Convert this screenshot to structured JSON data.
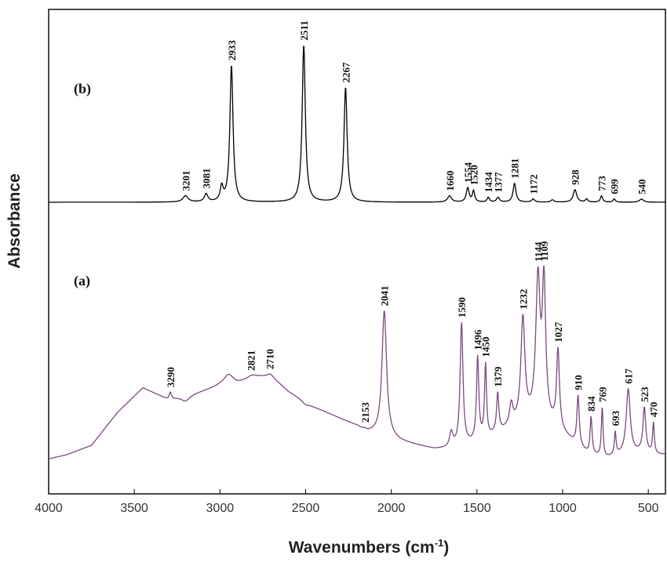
{
  "chart_data": {
    "type": "line",
    "title": "",
    "xlabel": "Wavenumbers (cm",
    "xlabel_sup": "-1",
    "xlabel_close": ")",
    "ylabel": "Absorbance",
    "xlim": [
      4000,
      400
    ],
    "x_ticks": [
      4000,
      3500,
      3000,
      2500,
      2000,
      1500,
      1000,
      500
    ],
    "grid": false,
    "legend": "none",
    "colors": {
      "a": "#7a4a7e",
      "b": "#000000",
      "axis": "#000000"
    },
    "series": [
      {
        "name": "(a)",
        "color": "#7a4a7e",
        "baseline": [
          [
            4000,
            0.06
          ],
          [
            3900,
            0.08
          ],
          [
            3750,
            0.13
          ],
          [
            3600,
            0.3
          ],
          [
            3450,
            0.43
          ],
          [
            3300,
            0.37
          ],
          [
            3150,
            0.4
          ],
          [
            3000,
            0.44
          ],
          [
            2900,
            0.45
          ],
          [
            2800,
            0.49
          ],
          [
            2700,
            0.49
          ],
          [
            2600,
            0.41
          ],
          [
            2450,
            0.33
          ],
          [
            2300,
            0.27
          ],
          [
            2200,
            0.23
          ],
          [
            2150,
            0.2
          ],
          [
            2050,
            0.18
          ],
          [
            1950,
            0.15
          ],
          [
            1850,
            0.13
          ],
          [
            1750,
            0.11
          ],
          [
            1650,
            0.11
          ],
          [
            1550,
            0.13
          ],
          [
            1450,
            0.16
          ],
          [
            1350,
            0.2
          ],
          [
            1250,
            0.24
          ],
          [
            1150,
            0.26
          ],
          [
            1050,
            0.22
          ],
          [
            950,
            0.15
          ],
          [
            850,
            0.08
          ],
          [
            750,
            0.06
          ],
          [
            650,
            0.08
          ],
          [
            550,
            0.09
          ],
          [
            450,
            0.08
          ],
          [
            400,
            0.08
          ]
        ],
        "peaks": [
          {
            "x": 3290,
            "y": 0.41,
            "w": 8
          },
          {
            "x": 3201,
            "y": 0.36,
            "w": 30
          },
          {
            "x": 2950,
            "y": 0.5,
            "w": 35
          },
          {
            "x": 2821,
            "y": 0.49,
            "w": 18
          },
          {
            "x": 2710,
            "y": 0.5,
            "w": 16
          },
          {
            "x": 2500,
            "y": 0.34,
            "w": 25
          },
          {
            "x": 2153,
            "y": 0.21,
            "w": 8
          },
          {
            "x": 2041,
            "y": 0.83,
            "w": 16
          },
          {
            "x": 1650,
            "y": 0.19,
            "w": 12
          },
          {
            "x": 1590,
            "y": 0.76,
            "w": 10
          },
          {
            "x": 1496,
            "y": 0.58,
            "w": 8
          },
          {
            "x": 1450,
            "y": 0.54,
            "w": 7
          },
          {
            "x": 1379,
            "y": 0.39,
            "w": 8
          },
          {
            "x": 1300,
            "y": 0.33,
            "w": 12
          },
          {
            "x": 1232,
            "y": 0.78,
            "w": 14
          },
          {
            "x": 1144,
            "y": 0.97,
            "w": 15
          },
          {
            "x": 1109,
            "y": 0.94,
            "w": 12
          },
          {
            "x": 1027,
            "y": 0.61,
            "w": 10
          },
          {
            "x": 910,
            "y": 0.38,
            "w": 8
          },
          {
            "x": 834,
            "y": 0.27,
            "w": 7
          },
          {
            "x": 769,
            "y": 0.32,
            "w": 6
          },
          {
            "x": 693,
            "y": 0.19,
            "w": 6
          },
          {
            "x": 617,
            "y": 0.42,
            "w": 14
          },
          {
            "x": 523,
            "y": 0.32,
            "w": 10
          },
          {
            "x": 470,
            "y": 0.24,
            "w": 6
          }
        ],
        "labels": [
          "3290",
          "2821",
          "2710",
          "2153",
          "2041",
          "1590",
          "1496",
          "1450",
          "1379",
          "1232",
          "1144",
          "1109",
          "1027",
          "910",
          "834",
          "769",
          "693",
          "617",
          "523",
          "470"
        ]
      },
      {
        "name": "(b)",
        "color": "#000000",
        "baseline": [
          [
            4000,
            0.0
          ],
          [
            400,
            0.0
          ]
        ],
        "peaks": [
          {
            "x": 3201,
            "y": 0.04,
            "w": 18
          },
          {
            "x": 3081,
            "y": 0.05,
            "w": 12
          },
          {
            "x": 2990,
            "y": 0.09,
            "w": 10
          },
          {
            "x": 2933,
            "y": 0.87,
            "w": 11
          },
          {
            "x": 2511,
            "y": 1.0,
            "w": 11
          },
          {
            "x": 2267,
            "y": 0.73,
            "w": 11
          },
          {
            "x": 1660,
            "y": 0.04,
            "w": 14
          },
          {
            "x": 1554,
            "y": 0.09,
            "w": 10
          },
          {
            "x": 1520,
            "y": 0.07,
            "w": 8
          },
          {
            "x": 1434,
            "y": 0.03,
            "w": 8
          },
          {
            "x": 1377,
            "y": 0.03,
            "w": 10
          },
          {
            "x": 1281,
            "y": 0.12,
            "w": 10
          },
          {
            "x": 1172,
            "y": 0.02,
            "w": 10
          },
          {
            "x": 1060,
            "y": 0.015,
            "w": 10
          },
          {
            "x": 928,
            "y": 0.08,
            "w": 12
          },
          {
            "x": 860,
            "y": 0.02,
            "w": 8
          },
          {
            "x": 773,
            "y": 0.04,
            "w": 8
          },
          {
            "x": 699,
            "y": 0.02,
            "w": 8
          },
          {
            "x": 540,
            "y": 0.02,
            "w": 14
          }
        ],
        "labels": [
          "3201",
          "3081",
          "2933",
          "2511",
          "2267",
          "1660",
          "1554",
          "1520",
          "1434",
          "1377",
          "1281",
          "1172",
          "928",
          "773",
          "699",
          "540"
        ]
      }
    ]
  }
}
